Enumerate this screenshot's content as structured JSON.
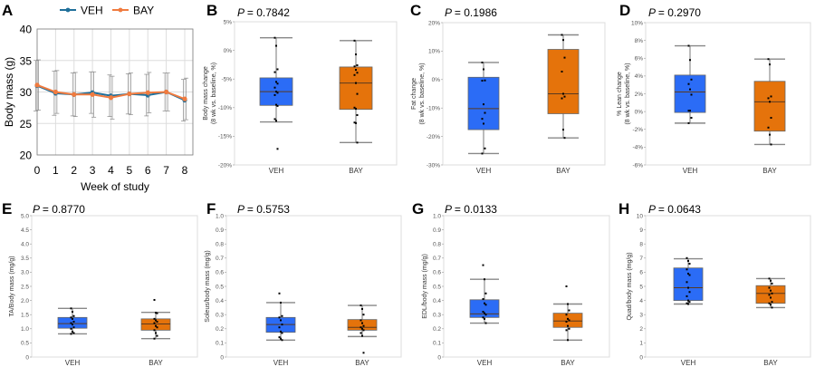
{
  "colors": {
    "VEH_line": "#1f6f9a",
    "BAY_line": "#f07b3f",
    "VEH_box": "#2b6cf6",
    "BAY_box": "#e5730b"
  },
  "chart_data": [
    {
      "panel": "A",
      "type": "line",
      "xlabel": "Week of study",
      "ylabel": "Body mass (g)",
      "ylim": [
        20,
        40
      ],
      "yticks": [
        "20",
        "25",
        "30",
        "35",
        "40"
      ],
      "x": [
        0,
        1,
        2,
        3,
        4,
        5,
        6,
        7,
        8
      ],
      "grid": true,
      "legend": "top",
      "series": [
        {
          "name": "VEH",
          "values": [
            31.0,
            29.8,
            29.6,
            29.9,
            29.4,
            29.7,
            29.5,
            30.0,
            28.7
          ],
          "error": [
            4.0,
            3.5,
            3.4,
            3.3,
            3.3,
            3.2,
            3.3,
            3.0,
            3.3
          ]
        },
        {
          "name": "BAY",
          "values": [
            31.1,
            30.0,
            29.6,
            29.6,
            29.1,
            29.7,
            29.9,
            30.0,
            28.9
          ],
          "error": [
            4.0,
            3.4,
            3.5,
            3.6,
            3.4,
            3.3,
            3.2,
            3.0,
            3.3
          ]
        }
      ]
    },
    {
      "panel": "B",
      "type": "box",
      "p_value": "= 0.7842",
      "ylabel": [
        "Body mass change",
        "(8 wk vs. baseline, %)"
      ],
      "ylim": [
        -20,
        5
      ],
      "yticks": [
        -20,
        -15,
        -10,
        -5,
        0,
        5
      ],
      "ytick_labels": [
        "-20%",
        "-15%",
        "-10%",
        "-5%",
        "0%",
        "5%"
      ],
      "categories": [
        "VEH",
        "BAY"
      ],
      "groups": [
        {
          "name": "VEH",
          "whisker_low": -12.5,
          "q1": -9.6,
          "median": -7.2,
          "q3": -4.8,
          "whisker_high": 2.2,
          "points": [
            2.2,
            0.8,
            -3.3,
            -3.8,
            -5.5,
            -5.8,
            -6.5,
            -7.2,
            -7.4,
            -7.8,
            -9.5,
            -9.7,
            -12.0,
            -12.3,
            -17.2
          ]
        },
        {
          "name": "BAY",
          "whisker_low": -16.1,
          "q1": -10.3,
          "median": -5.7,
          "q3": -2.9,
          "whisker_high": 1.7,
          "points": [
            1.7,
            -0.7,
            -2.6,
            -2.8,
            -3.4,
            -3.9,
            -4.3,
            -5.7,
            -7.6,
            -10.0,
            -10.2,
            -11.3,
            -12.6,
            -12.7,
            -16.1
          ]
        }
      ]
    },
    {
      "panel": "C",
      "type": "box",
      "p_value": "= 0.1986",
      "ylabel": [
        "Fat change",
        "(8 wk vs. baseline, %)"
      ],
      "ylim": [
        -30,
        20
      ],
      "yticks": [
        -30,
        -20,
        -10,
        0,
        10,
        20
      ],
      "ytick_labels": [
        "-30%",
        "-20%",
        "-10%",
        "0%",
        "10%",
        "20%"
      ],
      "categories": [
        "VEH",
        "BAY"
      ],
      "groups": [
        {
          "name": "VEH",
          "whisker_low": -26,
          "q1": -17.6,
          "median": -10.2,
          "q3": 0.8,
          "whisker_high": 6,
          "points": [
            6,
            3.6,
            -0.3,
            -0.4,
            -8.7,
            -11.7,
            -13.8,
            -15.5,
            -24.2,
            -26
          ]
        },
        {
          "name": "BAY",
          "whisker_low": -20.5,
          "q1": -12,
          "median": -5,
          "q3": 10.6,
          "whisker_high": 15.7,
          "points": [
            15.7,
            13.9,
            7.7,
            2.8,
            -5,
            -6,
            -6.6,
            -17.6,
            -20.5
          ]
        }
      ]
    },
    {
      "panel": "D",
      "type": "box",
      "p_value": "= 0.2970",
      "ylabel": [
        "% Lean change",
        "(8 wk vs. baseline, %)"
      ],
      "ylim": [
        -6,
        10
      ],
      "yticks": [
        -6,
        -4,
        -2,
        0,
        2,
        4,
        6,
        8,
        10
      ],
      "ytick_labels": [
        "-6%",
        "-4%",
        "-2%",
        "0%",
        "2%",
        "4%",
        "6%",
        "8%",
        "10%"
      ],
      "categories": [
        "VEH",
        "BAY"
      ],
      "groups": [
        {
          "name": "VEH",
          "whisker_low": -1.3,
          "q1": -0.1,
          "median": 2.2,
          "q3": 4.1,
          "whisker_high": 7.4,
          "points": [
            7.4,
            5.8,
            3.6,
            3.1,
            2.5,
            1.9,
            0.1,
            0.1,
            -0.7,
            -1.3
          ]
        },
        {
          "name": "BAY",
          "whisker_low": -3.7,
          "q1": -2.2,
          "median": 1.1,
          "q3": 3.4,
          "whisker_high": 5.9,
          "points": [
            5.9,
            5.3,
            1.7,
            1.5,
            1.1,
            -0.7,
            -1.8,
            -2.6,
            -3.7
          ]
        }
      ]
    },
    {
      "panel": "E",
      "type": "box",
      "p_value": "= 0.8770",
      "ylabel": [
        "TA/Body mass (mg/g)"
      ],
      "ylim": [
        0,
        5
      ],
      "yticks": [
        0,
        0.5,
        1,
        1.5,
        2,
        2.5,
        3,
        3.5,
        4,
        4.5,
        5
      ],
      "ytick_labels": [
        "0",
        "0.5",
        "1.0",
        "1.5",
        "2.0",
        "2.5",
        "3.0",
        "3.5",
        "4.0",
        "4.5",
        "5.0"
      ],
      "categories": [
        "VEH",
        "BAY"
      ],
      "groups": [
        {
          "name": "VEH",
          "whisker_low": 0.82,
          "q1": 1.02,
          "median": 1.18,
          "q3": 1.4,
          "whisker_high": 1.72,
          "points": [
            1.72,
            1.6,
            1.45,
            1.4,
            1.35,
            1.25,
            1.2,
            1.15,
            1.05,
            1.0,
            0.9,
            0.85,
            0.82
          ]
        },
        {
          "name": "BAY",
          "whisker_low": 0.65,
          "q1": 0.95,
          "median": 1.17,
          "q3": 1.35,
          "whisker_high": 1.58,
          "points": [
            2.02,
            1.57,
            1.55,
            1.35,
            1.3,
            1.25,
            1.2,
            1.1,
            1.05,
            0.95,
            0.85,
            0.75,
            0.65
          ]
        }
      ]
    },
    {
      "panel": "F",
      "type": "box",
      "p_value": "= 0.5753",
      "ylabel": [
        "Soleus/body mass (mg/g)"
      ],
      "ylim": [
        0,
        1
      ],
      "yticks": [
        0,
        0.1,
        0.2,
        0.3,
        0.4,
        0.5,
        0.6,
        0.7,
        0.8,
        0.9,
        1
      ],
      "ytick_labels": [
        "0",
        "0.1",
        "0.2",
        "0.3",
        "0.4",
        "0.5",
        "0.6",
        "0.7",
        "0.8",
        "0.9",
        "1.0"
      ],
      "categories": [
        "VEH",
        "BAY"
      ],
      "groups": [
        {
          "name": "VEH",
          "whisker_low": 0.12,
          "q1": 0.175,
          "median": 0.23,
          "q3": 0.28,
          "whisker_high": 0.385,
          "points": [
            0.45,
            0.385,
            0.29,
            0.28,
            0.26,
            0.23,
            0.21,
            0.18,
            0.17,
            0.14,
            0.13,
            0.12
          ]
        },
        {
          "name": "BAY",
          "whisker_low": 0.145,
          "q1": 0.19,
          "median": 0.21,
          "q3": 0.265,
          "whisker_high": 0.365,
          "points": [
            0.365,
            0.34,
            0.3,
            0.26,
            0.24,
            0.22,
            0.21,
            0.2,
            0.19,
            0.17,
            0.15,
            0.03
          ]
        }
      ]
    },
    {
      "panel": "G",
      "type": "box",
      "p_value": "= 0.0133",
      "ylabel": [
        "EDL/body mass (mg/g)"
      ],
      "ylim": [
        0,
        1
      ],
      "yticks": [
        0,
        0.1,
        0.2,
        0.3,
        0.4,
        0.5,
        0.6,
        0.7,
        0.8,
        0.9,
        1
      ],
      "ytick_labels": [
        "0",
        "0.1",
        "0.2",
        "0.3",
        "0.4",
        "0.5",
        "0.6",
        "0.7",
        "0.8",
        "0.9",
        "1.0"
      ],
      "categories": [
        "VEH",
        "BAY"
      ],
      "groups": [
        {
          "name": "VEH",
          "whisker_low": 0.24,
          "q1": 0.28,
          "median": 0.305,
          "q3": 0.405,
          "whisker_high": 0.55,
          "points": [
            0.65,
            0.55,
            0.45,
            0.41,
            0.38,
            0.37,
            0.32,
            0.31,
            0.3,
            0.28,
            0.27,
            0.24
          ]
        },
        {
          "name": "BAY",
          "whisker_low": 0.12,
          "q1": 0.21,
          "median": 0.255,
          "q3": 0.31,
          "whisker_high": 0.375,
          "points": [
            0.5,
            0.375,
            0.33,
            0.3,
            0.27,
            0.26,
            0.25,
            0.22,
            0.2,
            0.19,
            0.12
          ]
        }
      ]
    },
    {
      "panel": "H",
      "type": "box",
      "p_value": "= 0.0643",
      "ylabel": [
        "Quad/body mass (mg/g)"
      ],
      "ylim": [
        0,
        10
      ],
      "yticks": [
        0,
        1,
        2,
        3,
        4,
        5,
        6,
        7,
        8,
        9,
        10
      ],
      "ytick_labels": [
        "0",
        "1",
        "2",
        "3",
        "4",
        "5",
        "6",
        "7",
        "8",
        "9",
        "10"
      ],
      "categories": [
        "VEH",
        "BAY"
      ],
      "groups": [
        {
          "name": "VEH",
          "whisker_low": 3.75,
          "q1": 4.0,
          "median": 4.9,
          "q3": 6.3,
          "whisker_high": 6.95,
          "points": [
            7.0,
            6.8,
            6.6,
            6.2,
            5.9,
            5.8,
            5.3,
            4.9,
            4.6,
            4.3,
            4.0,
            3.9,
            3.8,
            3.75
          ]
        },
        {
          "name": "BAY",
          "whisker_low": 3.5,
          "q1": 3.8,
          "median": 4.5,
          "q3": 5.05,
          "whisker_high": 5.55,
          "points": [
            5.55,
            5.4,
            5.2,
            4.9,
            4.7,
            4.5,
            4.4,
            4.2,
            3.9,
            3.8,
            3.7,
            3.5
          ]
        }
      ]
    }
  ]
}
